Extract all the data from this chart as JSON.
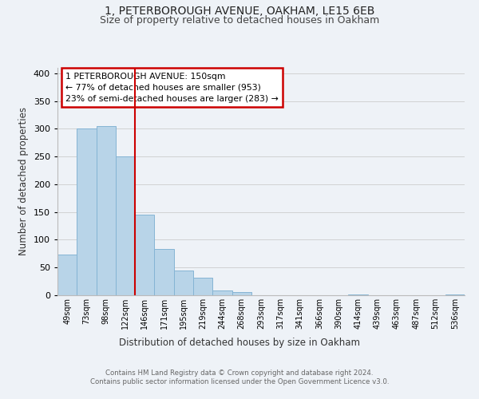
{
  "title1": "1, PETERBOROUGH AVENUE, OAKHAM, LE15 6EB",
  "title2": "Size of property relative to detached houses in Oakham",
  "xlabel": "Distribution of detached houses by size in Oakham",
  "ylabel": "Number of detached properties",
  "bar_labels": [
    "49sqm",
    "73sqm",
    "98sqm",
    "122sqm",
    "146sqm",
    "171sqm",
    "195sqm",
    "219sqm",
    "244sqm",
    "268sqm",
    "293sqm",
    "317sqm",
    "341sqm",
    "366sqm",
    "390sqm",
    "414sqm",
    "439sqm",
    "463sqm",
    "487sqm",
    "512sqm",
    "536sqm"
  ],
  "bar_values": [
    73,
    300,
    305,
    250,
    145,
    83,
    44,
    32,
    9,
    6,
    0,
    0,
    0,
    0,
    0,
    1,
    0,
    0,
    0,
    0,
    2
  ],
  "bar_color": "#b8d4e8",
  "bar_edge_color": "#85b4d4",
  "highlight_line_color": "#cc0000",
  "annotation_title": "1 PETERBOROUGH AVENUE: 150sqm",
  "annotation_line1": "← 77% of detached houses are smaller (953)",
  "annotation_line2": "23% of semi-detached houses are larger (283) →",
  "annotation_box_color": "#ffffff",
  "annotation_box_edge_color": "#cc0000",
  "ylim": [
    0,
    410
  ],
  "yticks": [
    0,
    50,
    100,
    150,
    200,
    250,
    300,
    350,
    400
  ],
  "footer_line1": "Contains HM Land Registry data © Crown copyright and database right 2024.",
  "footer_line2": "Contains public sector information licensed under the Open Government Licence v3.0.",
  "bg_color": "#eef2f7",
  "plot_bg_color": "#eef2f7",
  "grid_color": "#cccccc"
}
